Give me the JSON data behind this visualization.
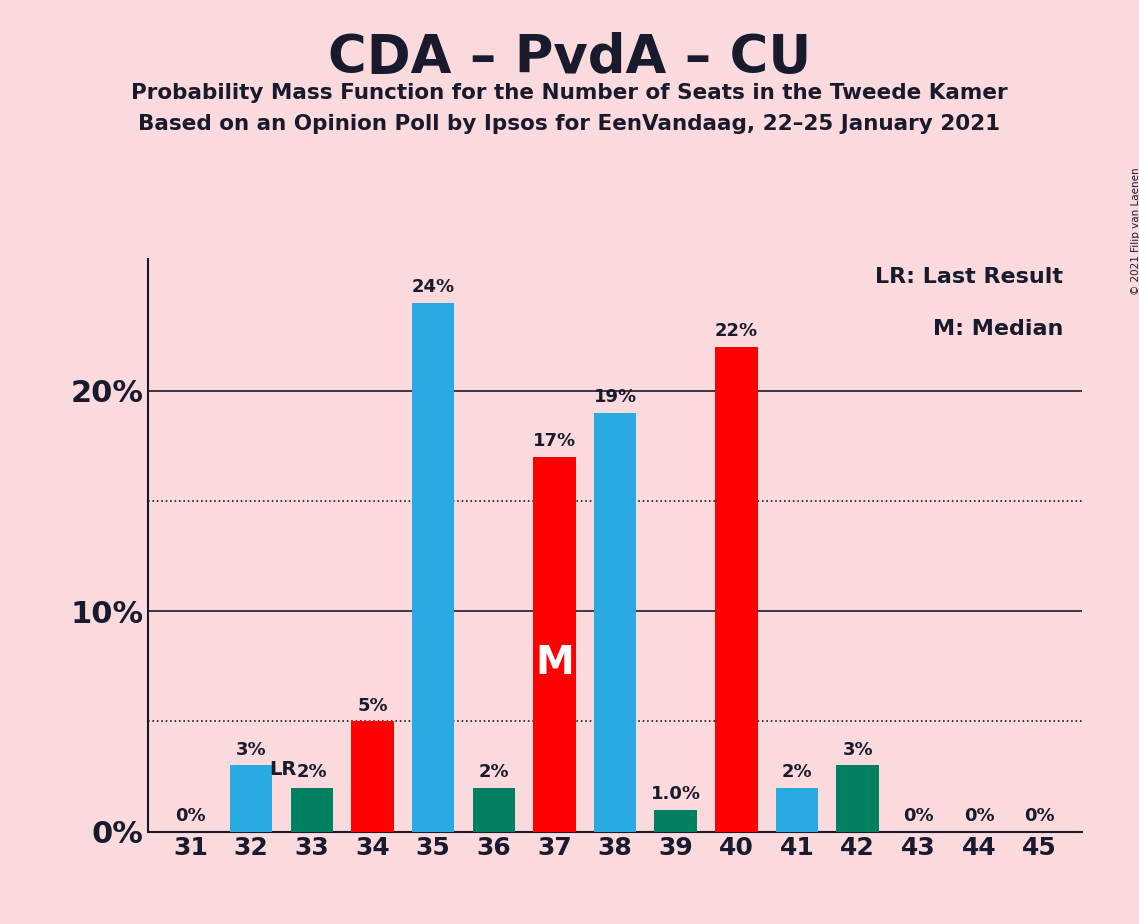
{
  "title": "CDA – PvdA – CU",
  "subtitle1": "Probability Mass Function for the Number of Seats in the Tweede Kamer",
  "subtitle2": "Based on an Opinion Poll by Ipsos for EenVandaag, 22–25 January 2021",
  "copyright": "© 2021 Filip van Laenen",
  "seats": [
    31,
    32,
    33,
    34,
    35,
    36,
    37,
    38,
    39,
    40,
    41,
    42,
    43,
    44,
    45
  ],
  "values": [
    0,
    3,
    2,
    5,
    24,
    2,
    17,
    19,
    1,
    22,
    2,
    3,
    0,
    0,
    0
  ],
  "colors": [
    "#29ABE2",
    "#29ABE2",
    "#008060",
    "#FF0000",
    "#29ABE2",
    "#008060",
    "#FF0000",
    "#29ABE2",
    "#008060",
    "#FF0000",
    "#29ABE2",
    "#008060",
    "#29ABE2",
    "#29ABE2",
    "#29ABE2"
  ],
  "labels": [
    "0%",
    "3%",
    "2%",
    "5%",
    "24%",
    "2%",
    "17%",
    "19%",
    "1.0%",
    "22%",
    "2%",
    "3%",
    "0%",
    "0%",
    "0%"
  ],
  "lr_seat": 33,
  "median_seat": 37,
  "background_color": "#FADADD",
  "text_color": "#1a1a2e",
  "ylim_max": 26,
  "bar_width": 0.7,
  "legend_lr": "LR: Last Result",
  "legend_m": "M: Median"
}
